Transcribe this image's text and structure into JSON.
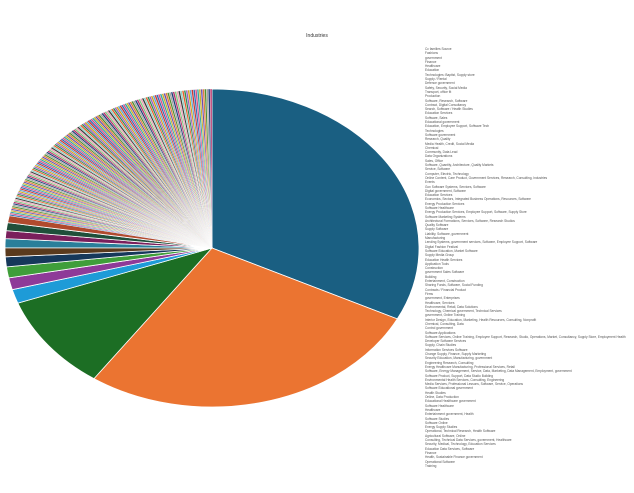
{
  "chart_data": {
    "type": "pie",
    "title": "Industries",
    "legend_placement": "right",
    "major_slices": [
      {
        "value": 32.0,
        "color": "#1a5f82"
      },
      {
        "value": 27.0,
        "color": "#eb7431"
      },
      {
        "value": 9.6,
        "color": "#1c6e24"
      },
      {
        "value": 1.4,
        "color": "#1e9bd7"
      },
      {
        "value": 1.2,
        "color": "#8e3a98"
      },
      {
        "value": 1.1,
        "color": "#3f9e3a"
      },
      {
        "value": 1.0,
        "color": "#16385a"
      },
      {
        "value": 0.9,
        "color": "#5a3a1d"
      },
      {
        "value": 0.9,
        "color": "#2a7f9a"
      },
      {
        "value": 0.8,
        "color": "#7a1f5c"
      },
      {
        "value": 0.8,
        "color": "#1f4f3a"
      },
      {
        "value": 0.7,
        "color": "#b04a2e"
      }
    ],
    "minor_slice_count": 150,
    "minor_slices_total": 21.5,
    "minor_palette": [
      "#2f6db5",
      "#d94e8a",
      "#35a6a0",
      "#c9b02b",
      "#6b4bb0",
      "#e07b39",
      "#4d8f2f",
      "#a3a3a3",
      "#1f3f7a",
      "#b8336a",
      "#7fc97f",
      "#f0a0b4",
      "#3b3b3b",
      "#8dd3c7",
      "#e85d2a",
      "#2e8b57",
      "#9e5fc2",
      "#d4a017",
      "#5fa8d3",
      "#cc3333"
    ],
    "legend": [
      "Cc families Source",
      "Fashions",
      "government",
      "Finance",
      "Healthcare",
      "Education",
      "Technologies: Baptist, Supply store",
      "Supply / Rental",
      "Defence government",
      "Safety, Security, Social Media",
      "Transport, office fit",
      "Production",
      "Software, Research, Software",
      "Contract, Digital Consultancy",
      "Search, Software / Health Studies",
      "Education Services",
      "Software, Sales",
      "Educational government",
      "Education, Employee Support, Software Tech",
      "Technologies",
      "Software government",
      "Research, Quality",
      "Media Health, Credit, Social Media",
      "Chemical",
      "Community, Data Lead",
      "Data Organizations",
      "Sales, Office",
      "Software, Quantity, Architecture, Quality Markets",
      "Service, Software",
      "Computer, Electric, Technology",
      "Online Content, Care Product, Government Services, Research, Consulting, Industries",
      "Events",
      "Gov Software Systems, Services, Software",
      "Digital government, Software",
      "Education Services",
      "Economics, Sectors, Integrated Business Operations, Resources, Software",
      "Energy Production Services",
      "Software Healthcare",
      "Energy Production Services, Employee Support, Software, Supply Store",
      "Software Marketing Systems",
      "Architectural Formations, Services, Software, Research Studios",
      "Quality Software",
      "Supply Software",
      "Liability, Software, government",
      "Manufacturing",
      "Lending Systems, government services, Software, Employee Support, Software",
      "Digital Fashion Festival",
      "Software Education, Market Software",
      "Supply Media Group",
      "Education Health Services",
      "Application Tools",
      "Construction",
      "government Sales Software",
      "Building",
      "Entertainment, Construction",
      "Sharing Funds, Software, Social Funding",
      "Contracts / Financial Product",
      "Firms",
      "government, Enterprises",
      "Healthcare, Services",
      "Environmental, Retail, Data Solutions",
      "Technology, Chemical government, Technical Services",
      "government, Online Training",
      "Interior Design, Education, Marketing, Health Resources, Consulting, Nonprofit",
      "Chemical, Consulting, Data",
      "Control government",
      "Software Applications",
      "Software Services, Online Training, Employee Support, Research, Studio, Operations, Market, Consultancy, Supply Store, Employment Health",
      "Developer Software Services",
      "Supply, Chain Studies",
      "Information Services Software",
      "Change Supply, Finance, Supply Marketing",
      "Security Education, Manufacturing, government",
      "Engineering Research, Consulting",
      "Energy Healthcare Manufacturing, Professional Services, Retail",
      "Software, Energy Management, Service, Data, Marketing, Data Management, Employment, government",
      "Software Product, Support, Data Studio Building",
      "Environmental Health Services, Consulting, Engineering",
      "Media Services, Professional Lessons, Software, Service, Operations",
      "Software Educational government",
      "Health Studies",
      "Online, Data Production",
      "Educational Healthcare government",
      "Software Healthcare",
      "Healthcare",
      "Entertainment government, Health",
      "Software Studies",
      "Software Online",
      "Energy Supply Studies",
      "Operational, Technical Research, Health Software",
      "Agricultural Software, Online",
      "Consulting, Technical Data Services, government, Healthcare",
      "Security, Medical, Technology, Education Services",
      "Education Data Services, Software",
      "Finance",
      "Health, Sustainable Finance government",
      "Operational Software",
      "Training"
    ]
  }
}
